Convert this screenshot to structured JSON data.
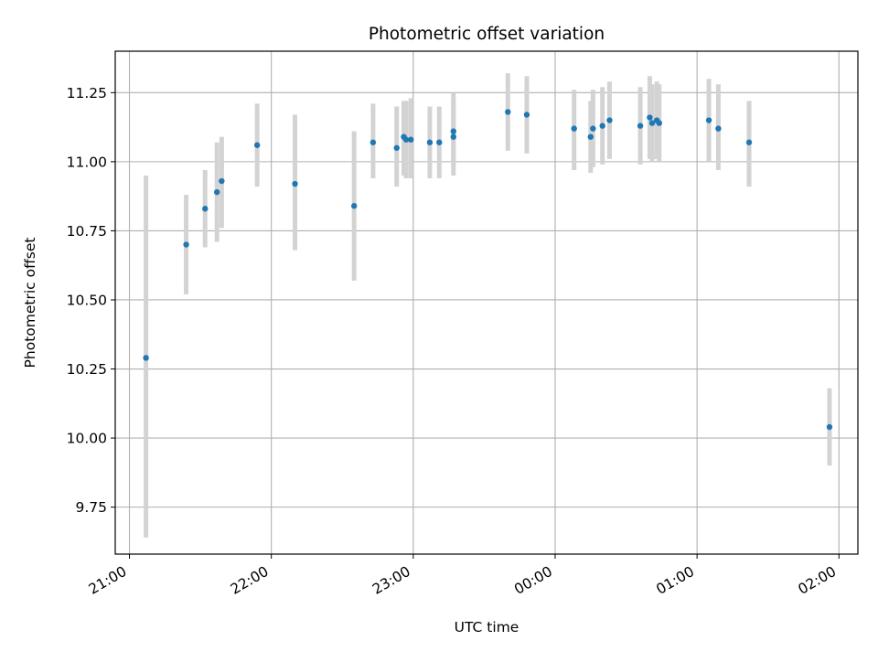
{
  "chart_data": {
    "type": "scatter",
    "title": "Photometric offset variation",
    "xlabel": "UTC time",
    "ylabel": "Photometric offset",
    "x_ticks": [
      "21:00",
      "22:00",
      "23:00",
      "00:00",
      "01:00",
      "02:00"
    ],
    "y_ticks": [
      "9.75",
      "10.00",
      "10.25",
      "10.50",
      "10.75",
      "11.00",
      "11.25"
    ],
    "xlim": [
      "20:54",
      "02:08"
    ],
    "ylim": [
      9.58,
      11.4
    ],
    "grid": true,
    "colors": {
      "points": "#1f77b4",
      "error_bars": "#d3d3d3",
      "grid": "#b0b0b0"
    },
    "points": [
      {
        "time": "21:07",
        "y": 10.29,
        "low": 9.64,
        "high": 10.95
      },
      {
        "time": "21:24",
        "y": 10.7,
        "low": 10.52,
        "high": 10.88
      },
      {
        "time": "21:32",
        "y": 10.83,
        "low": 10.69,
        "high": 10.97
      },
      {
        "time": "21:37",
        "y": 10.89,
        "low": 10.71,
        "high": 11.07
      },
      {
        "time": "21:39",
        "y": 10.93,
        "low": 10.76,
        "high": 11.09
      },
      {
        "time": "21:54",
        "y": 11.06,
        "low": 10.91,
        "high": 11.21
      },
      {
        "time": "22:10",
        "y": 10.92,
        "low": 10.68,
        "high": 11.17
      },
      {
        "time": "22:35",
        "y": 10.84,
        "low": 10.57,
        "high": 11.11
      },
      {
        "time": "22:43",
        "y": 11.07,
        "low": 10.94,
        "high": 11.21
      },
      {
        "time": "22:53",
        "y": 11.05,
        "low": 10.91,
        "high": 11.2
      },
      {
        "time": "22:56",
        "y": 11.09,
        "low": 10.95,
        "high": 11.22
      },
      {
        "time": "22:57",
        "y": 11.08,
        "low": 10.94,
        "high": 11.22
      },
      {
        "time": "22:59",
        "y": 11.08,
        "low": 10.94,
        "high": 11.23
      },
      {
        "time": "23:07",
        "y": 11.07,
        "low": 10.94,
        "high": 11.2
      },
      {
        "time": "23:11",
        "y": 11.07,
        "low": 10.94,
        "high": 11.2
      },
      {
        "time": "23:17",
        "y": 11.11,
        "low": 10.98,
        "high": 11.25
      },
      {
        "time": "23:17",
        "y": 11.09,
        "low": 10.95,
        "high": 11.22
      },
      {
        "time": "23:40",
        "y": 11.18,
        "low": 11.04,
        "high": 11.32
      },
      {
        "time": "23:48",
        "y": 11.17,
        "low": 11.03,
        "high": 11.31
      },
      {
        "time": "00:08",
        "y": 11.12,
        "low": 10.97,
        "high": 11.26
      },
      {
        "time": "00:15",
        "y": 11.09,
        "low": 10.96,
        "high": 11.22
      },
      {
        "time": "00:16",
        "y": 11.12,
        "low": 10.98,
        "high": 11.26
      },
      {
        "time": "00:20",
        "y": 11.13,
        "low": 10.99,
        "high": 11.27
      },
      {
        "time": "00:23",
        "y": 11.15,
        "low": 11.01,
        "high": 11.29
      },
      {
        "time": "00:36",
        "y": 11.13,
        "low": 10.99,
        "high": 11.27
      },
      {
        "time": "00:40",
        "y": 11.16,
        "low": 11.01,
        "high": 11.31
      },
      {
        "time": "00:41",
        "y": 11.14,
        "low": 11.0,
        "high": 11.28
      },
      {
        "time": "00:43",
        "y": 11.15,
        "low": 11.01,
        "high": 11.29
      },
      {
        "time": "00:44",
        "y": 11.14,
        "low": 11.0,
        "high": 11.28
      },
      {
        "time": "01:05",
        "y": 11.15,
        "low": 11.0,
        "high": 11.3
      },
      {
        "time": "01:09",
        "y": 11.12,
        "low": 10.97,
        "high": 11.28
      },
      {
        "time": "01:22",
        "y": 11.07,
        "low": 10.91,
        "high": 11.22
      },
      {
        "time": "01:56",
        "y": 10.04,
        "low": 9.9,
        "high": 10.18
      }
    ]
  }
}
